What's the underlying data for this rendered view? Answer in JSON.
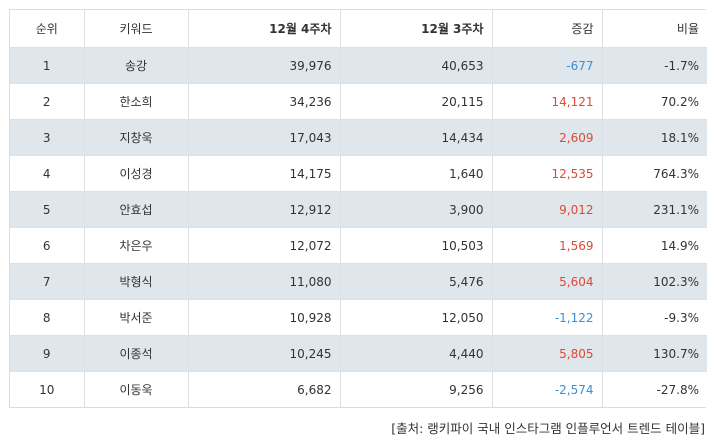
{
  "table": {
    "headers": [
      "순위",
      "키워드",
      "12월 4주차",
      "12월 3주차",
      "증감",
      "비율"
    ],
    "rows": [
      {
        "rank": "1",
        "keyword": "송강",
        "week4": "39,976",
        "week3": "40,653",
        "change": "-677",
        "change_sign": "neg",
        "ratio": "-1.7%"
      },
      {
        "rank": "2",
        "keyword": "한소희",
        "week4": "34,236",
        "week3": "20,115",
        "change": "14,121",
        "change_sign": "pos",
        "ratio": "70.2%"
      },
      {
        "rank": "3",
        "keyword": "지창욱",
        "week4": "17,043",
        "week3": "14,434",
        "change": "2,609",
        "change_sign": "pos",
        "ratio": "18.1%"
      },
      {
        "rank": "4",
        "keyword": "이성경",
        "week4": "14,175",
        "week3": "1,640",
        "change": "12,535",
        "change_sign": "pos",
        "ratio": "764.3%"
      },
      {
        "rank": "5",
        "keyword": "안효섭",
        "week4": "12,912",
        "week3": "3,900",
        "change": "9,012",
        "change_sign": "pos",
        "ratio": "231.1%"
      },
      {
        "rank": "6",
        "keyword": "차은우",
        "week4": "12,072",
        "week3": "10,503",
        "change": "1,569",
        "change_sign": "pos",
        "ratio": "14.9%"
      },
      {
        "rank": "7",
        "keyword": "박형식",
        "week4": "11,080",
        "week3": "5,476",
        "change": "5,604",
        "change_sign": "pos",
        "ratio": "102.3%"
      },
      {
        "rank": "8",
        "keyword": "박서준",
        "week4": "10,928",
        "week3": "12,050",
        "change": "-1,122",
        "change_sign": "neg",
        "ratio": "-9.3%"
      },
      {
        "rank": "9",
        "keyword": "이종석",
        "week4": "10,245",
        "week3": "4,440",
        "change": "5,805",
        "change_sign": "pos",
        "ratio": "130.7%"
      },
      {
        "rank": "10",
        "keyword": "이동욱",
        "week4": "6,682",
        "week3": "9,256",
        "change": "-2,574",
        "change_sign": "neg",
        "ratio": "-27.8%"
      }
    ]
  },
  "colors": {
    "positive": "#de4a35",
    "negative": "#3a8fd6",
    "stripe": "#dfe6ec"
  },
  "source": "[출처: 랭키파이 국내 인스타그램 인플루언서 트렌드 테이블]"
}
